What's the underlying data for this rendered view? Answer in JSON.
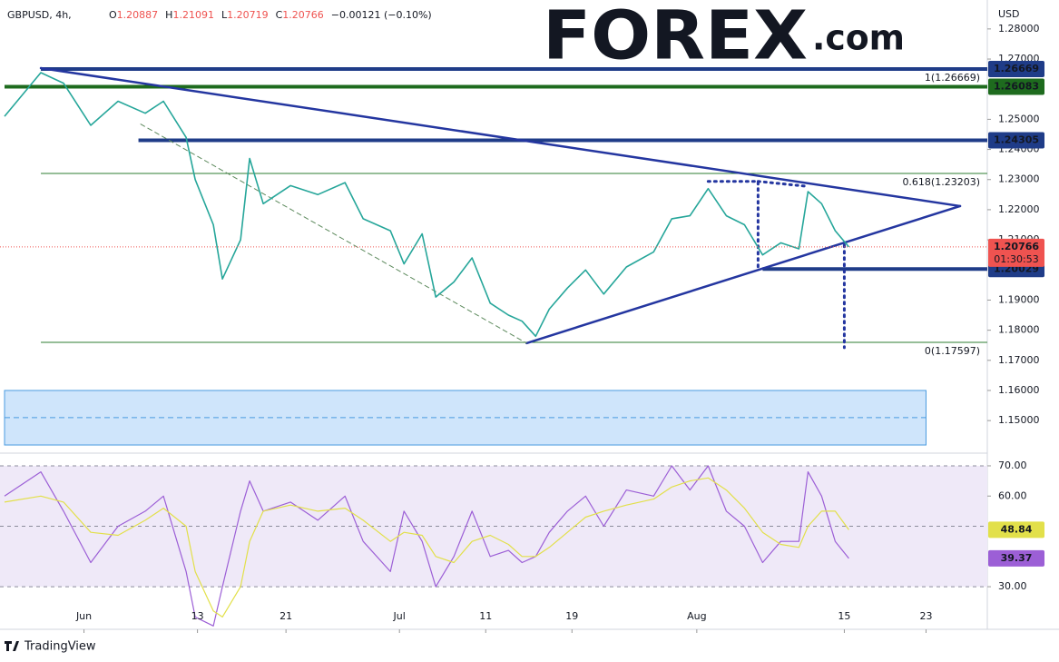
{
  "header": {
    "symbol": "GBPUSD, 4h,",
    "ohlc": [
      {
        "label": "O",
        "value": 1.20887
      },
      {
        "label": "H",
        "value": 1.21091
      },
      {
        "label": "L",
        "value": 1.20719
      },
      {
        "label": "C",
        "value": 1.20766
      }
    ],
    "change": "−0.00121 (−0.10%)"
  },
  "logo": {
    "brand": "FOREX",
    "suffix": ".com"
  },
  "footer": "TradingView",
  "chart_data": [
    {
      "type": "line",
      "y_unit": "USD",
      "x": [
        0,
        16,
        26,
        38,
        50,
        62,
        70,
        80,
        84,
        92,
        96,
        104,
        108,
        114,
        126,
        138,
        150,
        158,
        170,
        176,
        184,
        190,
        198,
        206,
        214,
        222,
        228,
        234,
        240,
        248,
        256,
        264,
        274,
        286,
        294,
        302,
        310,
        318,
        326,
        334,
        342,
        350,
        354,
        360,
        366,
        372
      ],
      "series": [
        {
          "color": "#26a69a",
          "values": [
            1.251,
            1.2655,
            1.262,
            1.248,
            1.256,
            1.252,
            1.256,
            1.244,
            1.23,
            1.215,
            1.197,
            1.21,
            1.237,
            1.222,
            1.228,
            1.225,
            1.229,
            1.217,
            1.213,
            1.202,
            1.212,
            1.191,
            1.196,
            1.204,
            1.189,
            1.185,
            1.183,
            1.178,
            1.187,
            1.194,
            1.2,
            1.192,
            1.201,
            1.206,
            1.217,
            1.218,
            1.227,
            1.218,
            1.215,
            1.205,
            1.209,
            1.207,
            1.226,
            1.222,
            1.213,
            1.20766
          ]
        }
      ],
      "countdown": "01:30:53",
      "xlim": [
        0,
        433
      ],
      "ylim": [
        1.1398,
        1.2896
      ],
      "yticks": [
        {
          "value": 1.28,
          "label": "1.28000"
        },
        {
          "value": 1.27,
          "label": "1.27000"
        },
        {
          "value": 1.25,
          "label": "1.25000"
        },
        {
          "value": 1.24,
          "label": "1.24000"
        },
        {
          "value": 1.23,
          "label": "1.23000"
        },
        {
          "value": 1.22,
          "label": "1.22000"
        },
        {
          "value": 1.21,
          "label": "1.21000"
        },
        {
          "value": 1.19,
          "label": "1.19000"
        },
        {
          "value": 1.18,
          "label": "1.18000"
        },
        {
          "value": 1.17,
          "label": "1.17000"
        },
        {
          "value": 1.16,
          "label": "1.16000"
        },
        {
          "value": 1.15,
          "label": "1.15000"
        }
      ],
      "levels": [
        {
          "value": 1.26669,
          "start": 16,
          "color": "#1f3c88"
        },
        {
          "value": 1.26083,
          "start": 0,
          "color": "#1e6b1e"
        },
        {
          "value": 1.24305,
          "start": 59,
          "color": "#1f3c88"
        },
        {
          "value": 1.20029,
          "start": 334,
          "color": "#1f3c88"
        }
      ],
      "fib": {
        "start": 16,
        "color": "#2e7d32",
        "lines": [
          {
            "value": 1.26669,
            "label": "1(1.26669)"
          },
          {
            "value": 1.23203,
            "label": "0.618(1.23203)"
          },
          {
            "value": 1.17597,
            "label": "0(1.17597)"
          }
        ]
      },
      "trendlines": [
        {
          "style": "solid",
          "color": "#2436a0",
          "x": [
            16,
            421
          ],
          "y": [
            1.267,
            1.2212
          ]
        },
        {
          "style": "solid",
          "color": "#2436a0",
          "x": [
            230,
            421
          ],
          "y": [
            1.1757,
            1.2212
          ]
        },
        {
          "style": "dashed",
          "color": "#5d8a5d",
          "x": [
            60,
            230
          ],
          "y": [
            1.2484,
            1.1757
          ]
        },
        {
          "style": "dotted",
          "color": "#2436a0",
          "x": [
            310,
            332,
            332
          ],
          "y": [
            1.2294,
            1.2294,
            1.2007
          ]
        },
        {
          "style": "dotted",
          "color": "#2436a0",
          "x": [
            332,
            353
          ],
          "y": [
            1.2294,
            1.2278
          ]
        },
        {
          "style": "dotted",
          "color": "#2436a0",
          "x": [
            370,
            370
          ],
          "y": [
            1.2083,
            1.1742
          ]
        }
      ],
      "zone": {
        "x": [
          0,
          406
        ],
        "y": [
          1.1419,
          1.16
        ],
        "mid": 1.151,
        "color": "#4a9be0"
      }
    },
    {
      "type": "line",
      "x": [
        0,
        16,
        26,
        38,
        50,
        62,
        70,
        80,
        84,
        92,
        96,
        104,
        108,
        114,
        126,
        138,
        150,
        158,
        170,
        176,
        184,
        190,
        198,
        206,
        214,
        222,
        228,
        234,
        240,
        248,
        256,
        264,
        274,
        286,
        294,
        302,
        310,
        318,
        326,
        334,
        342,
        350,
        354,
        360,
        366,
        372
      ],
      "series": [
        {
          "color": "#9c5fd6",
          "values": [
            60,
            68,
            55,
            38,
            50,
            55,
            60,
            35,
            20,
            17,
            30,
            55,
            65,
            55,
            58,
            52,
            60,
            45,
            35,
            55,
            45,
            30,
            40,
            55,
            40,
            42,
            38,
            40,
            48,
            55,
            60,
            50,
            62,
            60,
            70,
            62,
            70,
            55,
            50,
            38,
            45,
            45,
            68,
            60,
            45,
            39.37
          ]
        },
        {
          "color": "#e2e04a",
          "values": [
            58,
            60,
            58,
            48,
            47,
            52,
            56,
            50,
            35,
            22,
            20,
            30,
            45,
            55,
            57,
            55,
            56,
            52,
            45,
            48,
            47,
            40,
            38,
            45,
            47,
            44,
            40,
            40,
            43,
            48,
            53,
            55,
            57,
            59,
            63,
            65,
            66,
            62,
            56,
            48,
            44,
            43,
            50,
            55,
            55,
            48.84
          ]
        }
      ],
      "bands": [
        70,
        50,
        30
      ],
      "xlim": [
        0,
        433
      ],
      "ylim": [
        15.9,
        73.9
      ],
      "yticks": [
        {
          "value": 70,
          "label": "70.00"
        },
        {
          "value": 60,
          "label": "60.00"
        },
        {
          "value": 30,
          "label": "30.00"
        }
      ],
      "xticks": [
        {
          "value": 35,
          "label": "Jun"
        },
        {
          "value": 85,
          "label": "13"
        },
        {
          "value": 124,
          "label": "21"
        },
        {
          "value": 174,
          "label": "Jul"
        },
        {
          "value": 212,
          "label": "11"
        },
        {
          "value": 250,
          "label": "19"
        },
        {
          "value": 305,
          "label": "Aug"
        },
        {
          "value": 370,
          "label": "15"
        },
        {
          "value": 406,
          "label": "23"
        }
      ]
    }
  ]
}
